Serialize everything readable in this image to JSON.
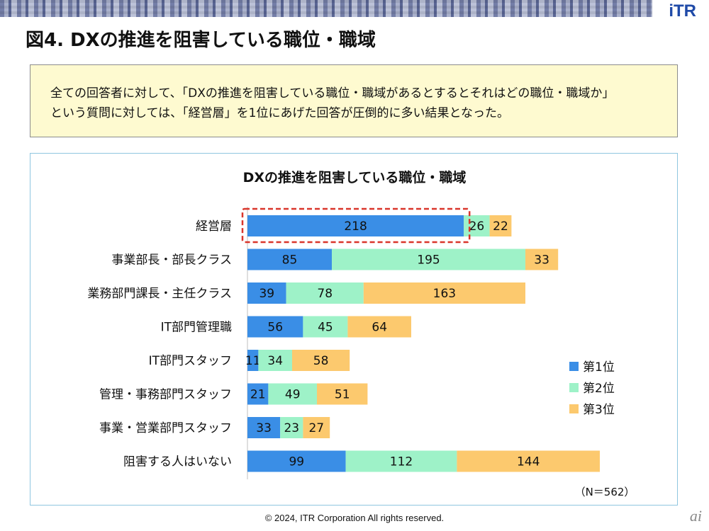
{
  "logo": "iTR",
  "page_title": "図4.  DXの推進を阻害している職位・職域",
  "summary": {
    "line1": "全ての回答者に対して、「DXの推進を阻害している職位・職域があるとするとそれはどの職位・職域か」",
    "line2": "という質問に対しては、「経営層」を1位にあげた回答が圧倒的に多い結果となった。"
  },
  "footer": "© 2024, ITR Corporation  All rights reserved.",
  "corner_mark": "ai",
  "colors": {
    "rank1": "#3a8ee6",
    "rank2": "#9ef2c8",
    "rank3": "#fcc96e",
    "highlight": "#d9362b"
  },
  "chart_data": {
    "type": "bar",
    "orientation": "horizontal",
    "stacked": true,
    "title": "DXの推進を阻害している職位・職域",
    "categories": [
      "経営層",
      "事業部長・部長クラス",
      "業務部門課長・主任クラス",
      "IT部門管理職",
      "IT部門スタッフ",
      "管理・事務部門スタッフ",
      "事業・営業部門スタッフ",
      "阻害する人はいない"
    ],
    "series": [
      {
        "name": "第1位",
        "values": [
          218,
          85,
          39,
          56,
          11,
          21,
          33,
          99
        ]
      },
      {
        "name": "第2位",
        "values": [
          26,
          195,
          78,
          45,
          34,
          49,
          23,
          112
        ]
      },
      {
        "name": "第3位",
        "values": [
          22,
          33,
          163,
          64,
          58,
          51,
          27,
          144
        ]
      }
    ],
    "highlight_category": "経営層",
    "legend_position": "right",
    "note": "（N＝562）"
  }
}
